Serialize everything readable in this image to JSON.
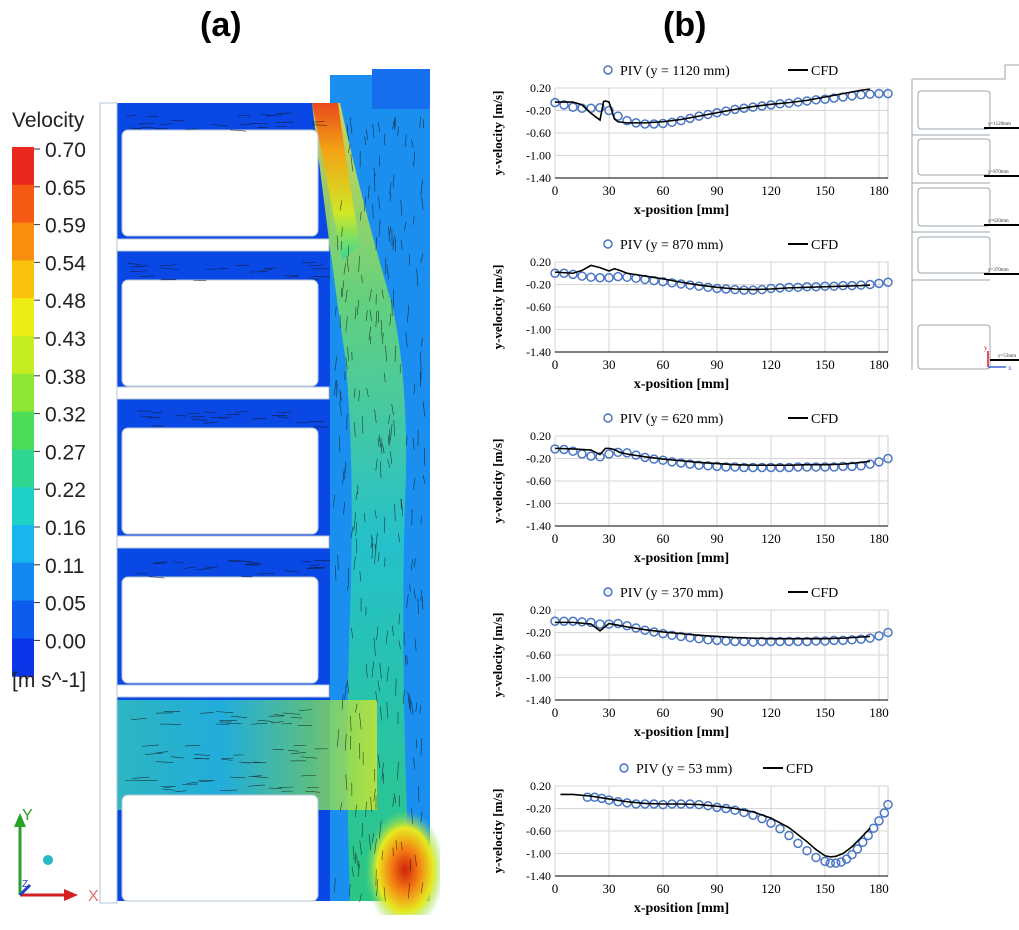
{
  "panel_a": {
    "label": "(a)",
    "colorbar": {
      "title": "Velocity",
      "unit": "[m s^-1]",
      "ticks": [
        "0.70",
        "0.65",
        "0.59",
        "0.54",
        "0.48",
        "0.43",
        "0.38",
        "0.32",
        "0.27",
        "0.22",
        "0.16",
        "0.11",
        "0.05",
        "0.00"
      ],
      "colors": [
        "#e8291c",
        "#f45a14",
        "#f98e0e",
        "#f9c20c",
        "#eded14",
        "#c4ee20",
        "#8ee634",
        "#4cdc58",
        "#2fd690",
        "#1ed1c6",
        "#1ab4ef",
        "#1388f2",
        "#0c5cee",
        "#0a35e8"
      ]
    },
    "axes_triad": {
      "x": "X",
      "y": "Y",
      "z": "Z"
    }
  },
  "panel_b": {
    "label": "(b)",
    "schematic_labels": [
      "y=1120mm",
      "y=870mm",
      "y=620mm",
      "y=370mm",
      "y=53mm",
      "y",
      "x"
    ]
  },
  "chart_data": [
    {
      "type": "scatter",
      "legend": [
        "PIV (y = 1120 mm)",
        "CFD"
      ],
      "xlabel": "x-position [mm]",
      "ylabel": "y-velocity [m/s]",
      "xlim": [
        0,
        185
      ],
      "ylim": [
        -1.4,
        0.2
      ],
      "xticks": [
        "0",
        "30",
        "60",
        "90",
        "120",
        "150",
        "180"
      ],
      "yticks": [
        "0.20",
        "-0.20",
        "-0.60",
        "-1.00",
        "-1.40"
      ],
      "series": [
        {
          "name": "PIV (y = 1120 mm)",
          "marker": "circle",
          "x": [
            0,
            5,
            10,
            15,
            20,
            25,
            30,
            35,
            40,
            45,
            50,
            55,
            60,
            65,
            70,
            75,
            80,
            85,
            90,
            95,
            100,
            105,
            110,
            115,
            120,
            125,
            130,
            135,
            140,
            145,
            150,
            155,
            160,
            165,
            170,
            175,
            180,
            185
          ],
          "y": [
            -0.06,
            -0.1,
            -0.14,
            -0.16,
            -0.16,
            -0.15,
            -0.2,
            -0.3,
            -0.38,
            -0.42,
            -0.44,
            -0.44,
            -0.43,
            -0.41,
            -0.38,
            -0.34,
            -0.3,
            -0.27,
            -0.24,
            -0.21,
            -0.18,
            -0.16,
            -0.14,
            -0.12,
            -0.1,
            -0.08,
            -0.07,
            -0.05,
            -0.03,
            -0.01,
            0.0,
            0.02,
            0.04,
            0.06,
            0.08,
            0.09,
            0.1,
            0.1
          ]
        },
        {
          "name": "CFD",
          "x": [
            0,
            5,
            10,
            15,
            20,
            25,
            27,
            28,
            30,
            33,
            35,
            40,
            50,
            60,
            70,
            80,
            90,
            100,
            110,
            120,
            130,
            140,
            150,
            160,
            170,
            175
          ],
          "y": [
            -0.05,
            -0.05,
            -0.05,
            -0.1,
            -0.25,
            -0.37,
            -0.04,
            -0.03,
            -0.05,
            -0.35,
            -0.4,
            -0.42,
            -0.42,
            -0.4,
            -0.36,
            -0.3,
            -0.24,
            -0.18,
            -0.13,
            -0.09,
            -0.06,
            -0.02,
            0.04,
            0.1,
            0.16,
            0.18
          ]
        }
      ]
    },
    {
      "type": "scatter",
      "legend": [
        "PIV (y = 870 mm)",
        "CFD"
      ],
      "xlabel": "x-position [mm]",
      "ylabel": "y-velocity [m/s]",
      "xlim": [
        0,
        185
      ],
      "ylim": [
        -1.4,
        0.2
      ],
      "xticks": [
        "0",
        "30",
        "60",
        "90",
        "120",
        "150",
        "180"
      ],
      "yticks": [
        "0.20",
        "-0.20",
        "-0.60",
        "-1.00",
        "-1.40"
      ],
      "series": [
        {
          "name": "PIV (y = 870 mm)",
          "marker": "circle",
          "x": [
            0,
            5,
            10,
            15,
            20,
            25,
            30,
            35,
            40,
            45,
            50,
            55,
            60,
            65,
            70,
            75,
            80,
            85,
            90,
            95,
            100,
            105,
            110,
            115,
            120,
            125,
            130,
            135,
            140,
            145,
            150,
            155,
            160,
            165,
            170,
            175,
            180,
            185
          ],
          "y": [
            0.0,
            0.0,
            -0.02,
            -0.05,
            -0.07,
            -0.08,
            -0.08,
            -0.06,
            -0.07,
            -0.09,
            -0.11,
            -0.13,
            -0.15,
            -0.17,
            -0.19,
            -0.21,
            -0.23,
            -0.25,
            -0.27,
            -0.28,
            -0.29,
            -0.3,
            -0.3,
            -0.29,
            -0.27,
            -0.26,
            -0.25,
            -0.25,
            -0.24,
            -0.24,
            -0.23,
            -0.23,
            -0.22,
            -0.22,
            -0.21,
            -0.2,
            -0.18,
            -0.16
          ]
        },
        {
          "name": "CFD",
          "x": [
            0,
            10,
            15,
            20,
            25,
            30,
            33,
            36,
            40,
            50,
            60,
            70,
            80,
            90,
            100,
            110,
            120,
            130,
            140,
            150,
            160,
            170,
            175
          ],
          "y": [
            0.02,
            0.0,
            0.05,
            0.14,
            0.1,
            0.04,
            0.08,
            0.05,
            0.0,
            -0.05,
            -0.1,
            -0.16,
            -0.21,
            -0.25,
            -0.28,
            -0.29,
            -0.28,
            -0.26,
            -0.25,
            -0.24,
            -0.23,
            -0.22,
            -0.21
          ]
        }
      ]
    },
    {
      "type": "scatter",
      "legend": [
        "PIV (y = 620 mm)",
        "CFD"
      ],
      "xlabel": "x-position [mm]",
      "ylabel": "y-velocity [m/s]",
      "xlim": [
        0,
        185
      ],
      "ylim": [
        -1.4,
        0.2
      ],
      "xticks": [
        "0",
        "30",
        "60",
        "90",
        "120",
        "150",
        "180"
      ],
      "yticks": [
        "0.20",
        "-0.20",
        "-0.60",
        "-1.00",
        "-1.40"
      ],
      "series": [
        {
          "name": "PIV (y = 620 mm)",
          "marker": "circle",
          "x": [
            0,
            5,
            10,
            15,
            20,
            25,
            30,
            35,
            40,
            45,
            50,
            55,
            60,
            65,
            70,
            75,
            80,
            85,
            90,
            95,
            100,
            105,
            110,
            115,
            120,
            125,
            130,
            135,
            140,
            145,
            150,
            155,
            160,
            165,
            170,
            175,
            180,
            185
          ],
          "y": [
            -0.03,
            -0.04,
            -0.07,
            -0.12,
            -0.16,
            -0.17,
            -0.12,
            -0.09,
            -0.1,
            -0.14,
            -0.18,
            -0.21,
            -0.23,
            -0.26,
            -0.28,
            -0.3,
            -0.32,
            -0.33,
            -0.34,
            -0.35,
            -0.35,
            -0.36,
            -0.36,
            -0.36,
            -0.36,
            -0.36,
            -0.36,
            -0.35,
            -0.35,
            -0.35,
            -0.35,
            -0.35,
            -0.34,
            -0.34,
            -0.33,
            -0.3,
            -0.26,
            -0.2
          ]
        },
        {
          "name": "CFD",
          "x": [
            0,
            10,
            20,
            25,
            28,
            30,
            33,
            36,
            40,
            50,
            60,
            70,
            80,
            90,
            100,
            110,
            120,
            130,
            140,
            150,
            160,
            170,
            175
          ],
          "y": [
            -0.02,
            -0.03,
            -0.05,
            -0.13,
            -0.02,
            -0.02,
            -0.04,
            -0.09,
            -0.12,
            -0.17,
            -0.21,
            -0.24,
            -0.27,
            -0.29,
            -0.31,
            -0.32,
            -0.32,
            -0.32,
            -0.31,
            -0.31,
            -0.3,
            -0.27,
            -0.25
          ]
        }
      ]
    },
    {
      "type": "scatter",
      "legend": [
        "PIV (y = 370 mm)",
        "CFD"
      ],
      "xlabel": "x-position [mm]",
      "ylabel": "y-velocity [m/s]",
      "xlim": [
        0,
        185
      ],
      "ylim": [
        -1.4,
        0.2
      ],
      "xticks": [
        "0",
        "30",
        "60",
        "90",
        "120",
        "150",
        "180"
      ],
      "yticks": [
        "0.20",
        "-0.20",
        "-0.60",
        "-1.00",
        "-1.40"
      ],
      "series": [
        {
          "name": "PIV (y = 370 mm)",
          "marker": "circle",
          "x": [
            0,
            5,
            10,
            15,
            20,
            25,
            30,
            35,
            40,
            45,
            50,
            55,
            60,
            65,
            70,
            75,
            80,
            85,
            90,
            95,
            100,
            105,
            110,
            115,
            120,
            125,
            130,
            135,
            140,
            145,
            150,
            155,
            160,
            165,
            170,
            175,
            180,
            185
          ],
          "y": [
            0.0,
            0.0,
            0.0,
            -0.01,
            -0.02,
            -0.05,
            -0.05,
            -0.04,
            -0.08,
            -0.12,
            -0.16,
            -0.19,
            -0.22,
            -0.25,
            -0.27,
            -0.29,
            -0.31,
            -0.33,
            -0.34,
            -0.35,
            -0.36,
            -0.36,
            -0.37,
            -0.36,
            -0.36,
            -0.36,
            -0.36,
            -0.36,
            -0.36,
            -0.35,
            -0.35,
            -0.34,
            -0.34,
            -0.33,
            -0.32,
            -0.3,
            -0.26,
            -0.2
          ]
        },
        {
          "name": "CFD",
          "x": [
            0,
            10,
            20,
            25,
            30,
            35,
            40,
            50,
            60,
            70,
            80,
            90,
            100,
            110,
            120,
            130,
            140,
            150,
            160,
            170,
            175
          ],
          "y": [
            -0.02,
            -0.02,
            -0.05,
            -0.17,
            -0.04,
            -0.07,
            -0.1,
            -0.15,
            -0.19,
            -0.22,
            -0.25,
            -0.27,
            -0.29,
            -0.3,
            -0.31,
            -0.31,
            -0.31,
            -0.31,
            -0.3,
            -0.28,
            -0.27
          ]
        }
      ]
    },
    {
      "type": "scatter",
      "legend": [
        "PIV (y = 53 mm)",
        "CFD"
      ],
      "xlabel": "x-position [mm]",
      "ylabel": "y-velocity [m/s]",
      "xlim": [
        0,
        185
      ],
      "ylim": [
        -1.4,
        0.2
      ],
      "xticks": [
        "0",
        "30",
        "60",
        "90",
        "120",
        "150",
        "180"
      ],
      "yticks": [
        "0.20",
        "-0.20",
        "-0.60",
        "-1.00",
        "-1.40"
      ],
      "series": [
        {
          "name": "PIV (y = 53 mm)",
          "marker": "circle",
          "x": [
            18,
            22,
            26,
            30,
            35,
            40,
            45,
            50,
            55,
            60,
            65,
            70,
            75,
            80,
            85,
            90,
            95,
            100,
            105,
            110,
            115,
            120,
            125,
            130,
            135,
            140,
            145,
            150,
            153,
            156,
            159,
            162,
            165,
            168,
            171,
            174,
            177,
            180,
            183,
            185
          ],
          "y": [
            0.0,
            0.0,
            -0.02,
            -0.05,
            -0.08,
            -0.1,
            -0.12,
            -0.12,
            -0.12,
            -0.13,
            -0.12,
            -0.12,
            -0.12,
            -0.13,
            -0.15,
            -0.18,
            -0.2,
            -0.23,
            -0.27,
            -0.32,
            -0.38,
            -0.46,
            -0.56,
            -0.68,
            -0.82,
            -0.95,
            -1.07,
            -1.14,
            -1.17,
            -1.17,
            -1.15,
            -1.1,
            -1.02,
            -0.92,
            -0.8,
            -0.68,
            -0.55,
            -0.42,
            -0.28,
            -0.13
          ]
        },
        {
          "name": "CFD",
          "x": [
            3,
            10,
            20,
            30,
            40,
            50,
            60,
            70,
            80,
            90,
            100,
            110,
            120,
            130,
            140,
            145,
            150,
            153,
            156,
            160,
            165,
            170,
            175
          ],
          "y": [
            0.05,
            0.05,
            0.02,
            -0.03,
            -0.08,
            -0.11,
            -0.12,
            -0.12,
            -0.13,
            -0.16,
            -0.2,
            -0.26,
            -0.37,
            -0.54,
            -0.79,
            -0.93,
            -1.04,
            -1.06,
            -1.05,
            -1.0,
            -0.88,
            -0.72,
            -0.55
          ]
        }
      ]
    }
  ]
}
